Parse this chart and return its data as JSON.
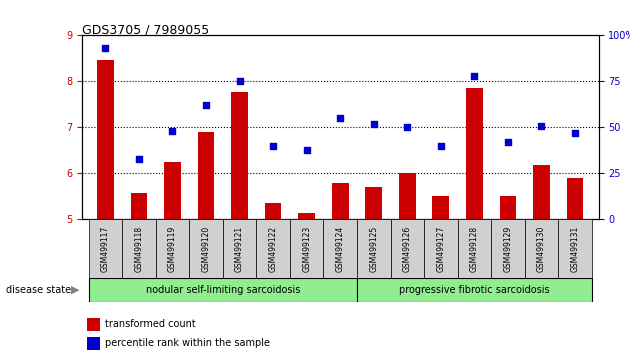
{
  "title": "GDS3705 / 7989055",
  "samples": [
    "GSM499117",
    "GSM499118",
    "GSM499119",
    "GSM499120",
    "GSM499121",
    "GSM499122",
    "GSM499123",
    "GSM499124",
    "GSM499125",
    "GSM499126",
    "GSM499127",
    "GSM499128",
    "GSM499129",
    "GSM499130",
    "GSM499131"
  ],
  "transformed_count": [
    8.47,
    5.57,
    6.25,
    6.9,
    7.78,
    5.35,
    5.15,
    5.8,
    5.7,
    6.02,
    5.52,
    7.85,
    5.52,
    6.18,
    5.9
  ],
  "percentile_rank": [
    93,
    33,
    48,
    62,
    75,
    40,
    38,
    55,
    52,
    50,
    40,
    78,
    42,
    51,
    47
  ],
  "group1_count": 8,
  "group2_count": 7,
  "group1_label": "nodular self-limiting sarcoidosis",
  "group2_label": "progressive fibrotic sarcoidosis",
  "disease_state_label": "disease state",
  "bar_color": "#cc0000",
  "dot_color": "#0000cc",
  "ylim_left": [
    5,
    9
  ],
  "ylim_right": [
    0,
    100
  ],
  "yticks_left": [
    5,
    6,
    7,
    8,
    9
  ],
  "yticks_right": [
    0,
    25,
    50,
    75,
    100
  ],
  "ytick_labels_right": [
    "0",
    "25",
    "50",
    "75",
    "100%"
  ],
  "background_color": "white",
  "group_bg": "#90ee90",
  "tick_label_color_left": "#cc0000",
  "tick_label_color_right": "#0000cc",
  "legend_red_label": "transformed count",
  "legend_blue_label": "percentile rank within the sample",
  "box_color": "#d0d0d0"
}
